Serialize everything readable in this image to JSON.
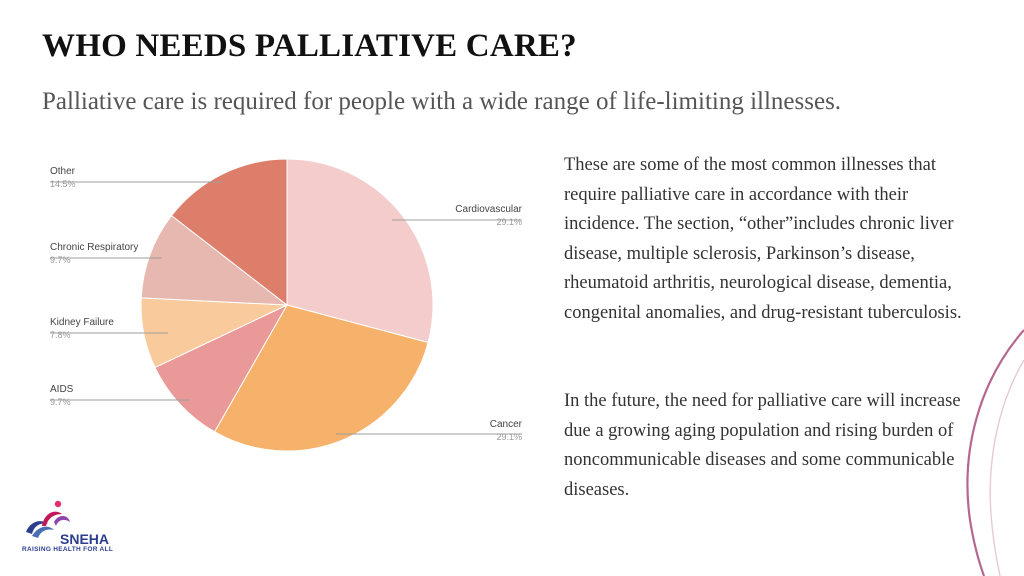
{
  "slide": {
    "title": "WHO NEEDS PALLIATIVE CARE?",
    "subtitle": "Palliative care is required for people with a wide range of life-limiting illnesses.",
    "paragraph1": "These are some of the most common illnesses that require palliative care in accordance with their incidence. The section, “other”includes chronic liver disease, multiple sclerosis, Parkinson’s disease, rheumatoid arthritis, neurological disease, dementia, congenital anomalies, and drug-resistant tuberculosis.",
    "paragraph2": "In the future, the need for palliative care will increase due a growing aging population and rising burden of noncommunicable diseases and some communicable diseases.",
    "accent_color": "#b5678f"
  },
  "logo": {
    "name": "SNEHA",
    "tagline": "RAISING HEALTH FOR ALL"
  },
  "chart_data": {
    "type": "pie",
    "slices": [
      {
        "label": "Cardiovascular",
        "value": 29.1,
        "value_label": "29.1%",
        "color": "#f4cccc"
      },
      {
        "label": "Cancer",
        "value": 29.1,
        "value_label": "29.1%",
        "color": "#f6b26b"
      },
      {
        "label": "AIDS",
        "value": 9.7,
        "value_label": "9.7%",
        "color": "#ea9999"
      },
      {
        "label": "Kidney Failure",
        "value": 7.8,
        "value_label": "7.8%",
        "color": "#f9cb9c"
      },
      {
        "label": "Chronic Respiratory",
        "value": 9.7,
        "value_label": "9.7%",
        "color": "#e6b8af"
      },
      {
        "label": "Other",
        "value": 14.5,
        "value_label": "14.5%",
        "color": "#dd7e6b"
      }
    ],
    "legend": "callout labels",
    "start_angle_deg": 0,
    "direction": "clockwise"
  }
}
